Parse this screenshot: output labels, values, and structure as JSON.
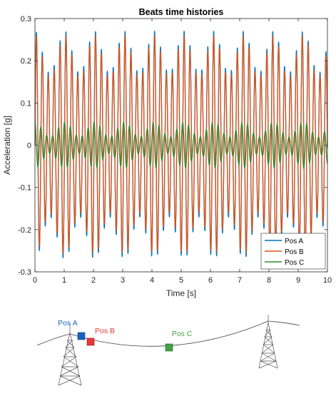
{
  "chart_data": {
    "type": "line",
    "title": "Beats time histories",
    "xlabel": "Time [s]",
    "ylabel": "Acceleration [g]",
    "xlim": [
      0,
      10
    ],
    "ylim": [
      -0.3,
      0.3
    ],
    "x_ticks": [
      "0",
      "1",
      "2",
      "3",
      "4",
      "5",
      "6",
      "7",
      "8",
      "9",
      "10"
    ],
    "y_ticks": [
      "0.3",
      "0.2",
      "0.1",
      "0",
      "-0.1",
      "-0.2",
      "-0.3"
    ],
    "grid": false,
    "legend_position": "bottom-right",
    "series": [
      {
        "name": "Pos A",
        "color": "#0072BD",
        "waveform": {
          "carrier_period_s": 0.202,
          "beat_period_s": 1.02,
          "amplitude_max": 0.27,
          "amplitude_min": 0.17
        }
      },
      {
        "name": "Pos B",
        "color": "#D95319",
        "waveform": {
          "carrier_period_s": 0.202,
          "beat_period_s": 1.02,
          "amplitude_max": 0.26,
          "amplitude_min": 0.16
        }
      },
      {
        "name": "Pos C",
        "color": "#2E8B2E",
        "waveform": {
          "carrier_period_s": 0.202,
          "beat_period_s": 1.02,
          "amplitude_max": 0.055,
          "amplitude_min": 0.02
        }
      }
    ]
  },
  "diagram": {
    "sensors": [
      {
        "label": "Pos A",
        "color": "#1565C0"
      },
      {
        "label": "Pos B",
        "color": "#E53935"
      },
      {
        "label": "Pos C",
        "color": "#43A047"
      }
    ]
  }
}
